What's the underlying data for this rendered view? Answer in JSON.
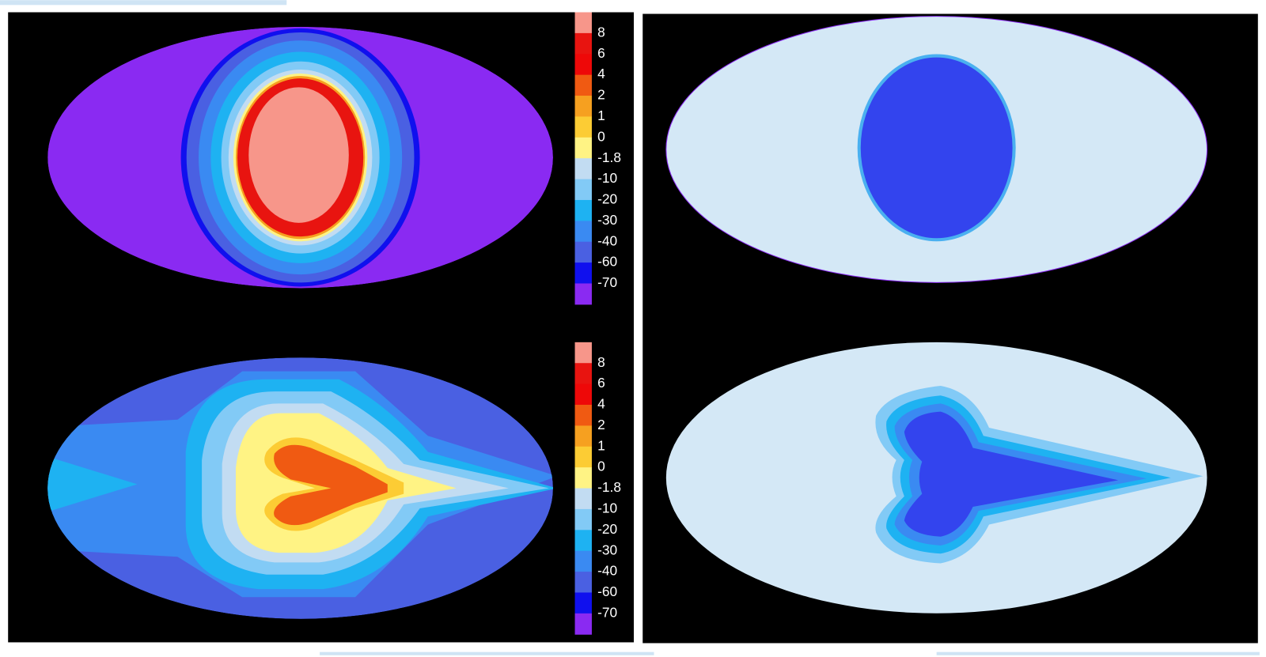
{
  "colorbar_colors": [
    "#f7968a",
    "#e81410",
    "#ee0808",
    "#f05a12",
    "#f6a020",
    "#fccc34",
    "#fff384",
    "#c2dcf2",
    "#82caf6",
    "#1eb2f2",
    "#3a8af2",
    "#4a60e2",
    "#1010ee",
    "#8a2af2"
  ],
  "colorbars": [
    {
      "labels": [
        8,
        6,
        4,
        2,
        1,
        0,
        -1.8,
        -10,
        -20,
        -30,
        -40,
        -60,
        -70
      ]
    },
    {
      "labels": [
        8,
        6,
        4,
        2,
        1,
        0,
        -1.8,
        -10,
        -20,
        -30,
        -40,
        -60,
        -70
      ]
    }
  ]
}
